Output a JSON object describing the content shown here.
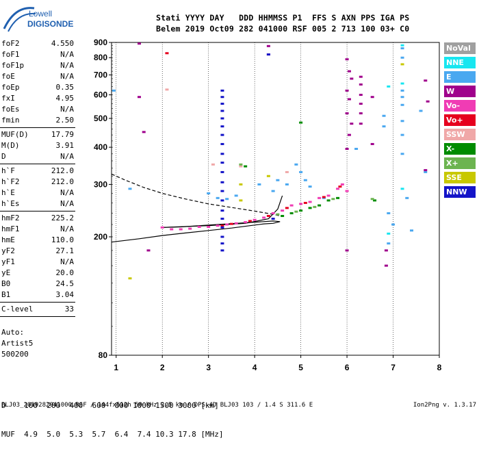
{
  "logo": {
    "line1": "Lowell",
    "line2": "DIGISONDE"
  },
  "header": {
    "row1": "Stati YYYY DAY   DDD HHMMSS P1  FFS S AXN PPS IGA PS",
    "row2": "Belem 2019 Oct09 282 041000 RSF 005 2 713 100 03+ C0"
  },
  "params": [
    {
      "name": "foF2",
      "value": "4.550"
    },
    {
      "name": "foF1",
      "value": "N/A"
    },
    {
      "name": "foF1p",
      "value": "N/A"
    },
    {
      "name": "foE",
      "value": "N/A"
    },
    {
      "name": "foEp",
      "value": "0.35"
    },
    {
      "name": "fxI",
      "value": "4.95"
    },
    {
      "name": "foEs",
      "value": "N/A"
    },
    {
      "name": "fmin",
      "value": "2.50"
    },
    {
      "sep": true
    },
    {
      "name": "MUF(D)",
      "value": "17.79"
    },
    {
      "name": "M(D)",
      "value": "3.91"
    },
    {
      "name": "D",
      "value": "N/A"
    },
    {
      "sep": true
    },
    {
      "name": "h`F",
      "value": "212.0"
    },
    {
      "name": "h`F2",
      "value": "212.0"
    },
    {
      "name": "h`E",
      "value": "N/A"
    },
    {
      "name": "h`Es",
      "value": "N/A"
    },
    {
      "sep": true
    },
    {
      "name": "hmF2",
      "value": "225.2"
    },
    {
      "name": "hmF1",
      "value": "N/A"
    },
    {
      "name": "hmE",
      "value": "110.0"
    },
    {
      "name": "yF2",
      "value": "27.1"
    },
    {
      "name": "yF1",
      "value": "N/A"
    },
    {
      "name": "yE",
      "value": "20.0"
    },
    {
      "name": "B0",
      "value": "24.5"
    },
    {
      "name": "B1",
      "value": "3.04"
    },
    {
      "sep": true
    },
    {
      "name": "C-level",
      "value": "33"
    },
    {
      "sep": true
    }
  ],
  "auto": {
    "line1": "Auto:",
    "line2": "Artist5",
    "line3": "500200"
  },
  "legend": [
    {
      "label": "NoVal",
      "color": "#a0a0a0"
    },
    {
      "label": "NNE",
      "color": "#18e6f0"
    },
    {
      "label": "E",
      "color": "#4aa8f0"
    },
    {
      "label": "W",
      "color": "#a0008c"
    },
    {
      "label": "Vo-",
      "color": "#f03cb4"
    },
    {
      "label": "Vo+",
      "color": "#e6001e"
    },
    {
      "label": "SSW",
      "color": "#f0a8a8"
    },
    {
      "label": "X-",
      "color": "#008c00"
    },
    {
      "label": "X+",
      "color": "#6cb450"
    },
    {
      "label": "SSE",
      "color": "#c8c800"
    },
    {
      "label": "NNW",
      "color": "#1414c8"
    }
  ],
  "distances": {
    "row1": "D    100  200  400  600  800 1000 1500 3000 [km]",
    "row2": "MUF  4.9  5.0  5.3  5.7  6.4  7.4 10.3 17.8 [MHz]"
  },
  "footer": "BLJ03_2019282041000.RSF / 144fx512h 50 kHz 2.5 km / DPS-4D BLJ03 103 / 1.4 S 311.6 E",
  "version": "Ion2Png v. 1.3.17",
  "chart_data": {
    "type": "scatter",
    "title": "",
    "xlabel": "",
    "ylabel": "",
    "xlim": [
      0.9,
      8.0
    ],
    "ylim": [
      80,
      900
    ],
    "y_scale": "log",
    "xticks": [
      1,
      2,
      3,
      4,
      5,
      6,
      7,
      8
    ],
    "yticks": [
      80,
      200,
      300,
      400,
      500,
      600,
      700,
      800,
      900
    ],
    "grid": "vertical",
    "series": [
      {
        "name": "NNE",
        "color": "#18e6f0",
        "points": [
          [
            7.2,
            880
          ],
          [
            7.2,
            655
          ],
          [
            6.9,
            640
          ],
          [
            7.2,
            290
          ],
          [
            6.9,
            205
          ]
        ]
      },
      {
        "name": "E",
        "color": "#4aa8f0",
        "points": [
          [
            0.95,
            620
          ],
          [
            1.3,
            290
          ],
          [
            3.0,
            280
          ],
          [
            3.2,
            270
          ],
          [
            3.4,
            268
          ],
          [
            3.6,
            275
          ],
          [
            4.1,
            300
          ],
          [
            4.4,
            285
          ],
          [
            4.5,
            310
          ],
          [
            4.7,
            300
          ],
          [
            4.9,
            350
          ],
          [
            5.0,
            330
          ],
          [
            5.1,
            310
          ],
          [
            5.2,
            295
          ],
          [
            5.5,
            270
          ],
          [
            6.2,
            395
          ],
          [
            6.8,
            510
          ],
          [
            6.8,
            470
          ],
          [
            6.9,
            240
          ],
          [
            6.9,
            190
          ],
          [
            7.0,
            220
          ],
          [
            7.2,
            860
          ],
          [
            7.2,
            800
          ],
          [
            7.2,
            620
          ],
          [
            7.2,
            590
          ],
          [
            7.2,
            555
          ],
          [
            7.2,
            490
          ],
          [
            7.2,
            440
          ],
          [
            7.2,
            380
          ],
          [
            7.3,
            270
          ],
          [
            7.4,
            210
          ],
          [
            7.6,
            530
          ],
          [
            7.7,
            330
          ]
        ]
      },
      {
        "name": "W",
        "color": "#a0008c",
        "points": [
          [
            1.5,
            590
          ],
          [
            1.6,
            450
          ],
          [
            1.5,
            892
          ],
          [
            4.3,
            875
          ],
          [
            4.3,
            820
          ],
          [
            6.0,
            790
          ],
          [
            6.05,
            720
          ],
          [
            6.1,
            680
          ],
          [
            6.0,
            620
          ],
          [
            6.05,
            580
          ],
          [
            6.0,
            520
          ],
          [
            6.1,
            480
          ],
          [
            6.05,
            440
          ],
          [
            6.0,
            395
          ],
          [
            6.3,
            690
          ],
          [
            6.3,
            650
          ],
          [
            6.3,
            600
          ],
          [
            6.3,
            560
          ],
          [
            6.3,
            520
          ],
          [
            6.3,
            480
          ],
          [
            6.55,
            590
          ],
          [
            6.55,
            410
          ],
          [
            6.85,
            180
          ],
          [
            6.85,
            160
          ],
          [
            7.7,
            670
          ],
          [
            7.75,
            570
          ],
          [
            7.7,
            335
          ],
          [
            1.7,
            180
          ],
          [
            6.0,
            180
          ]
        ]
      },
      {
        "name": "Vo-",
        "color": "#f03cb4",
        "points": [
          [
            2.0,
            215
          ],
          [
            2.2,
            212
          ],
          [
            2.4,
            212
          ],
          [
            2.6,
            213
          ],
          [
            2.8,
            216
          ],
          [
            3.0,
            216
          ],
          [
            3.2,
            218
          ],
          [
            3.4,
            220
          ],
          [
            3.6,
            222
          ],
          [
            3.8,
            224
          ],
          [
            4.0,
            228
          ],
          [
            4.2,
            232
          ],
          [
            4.4,
            240
          ],
          [
            4.6,
            245
          ],
          [
            4.8,
            255
          ],
          [
            5.0,
            258
          ],
          [
            5.2,
            262
          ],
          [
            5.4,
            270
          ],
          [
            5.6,
            275
          ],
          [
            5.8,
            290
          ],
          [
            5.9,
            300
          ],
          [
            6.0,
            285
          ]
        ]
      },
      {
        "name": "Vo+",
        "color": "#e6001e",
        "points": [
          [
            2.1,
            828
          ],
          [
            3.3,
            218
          ],
          [
            3.5,
            221
          ],
          [
            3.9,
            226
          ],
          [
            4.3,
            235
          ],
          [
            4.7,
            250
          ],
          [
            5.1,
            260
          ],
          [
            5.5,
            272
          ],
          [
            5.85,
            295
          ]
        ]
      },
      {
        "name": "SSW",
        "color": "#f0a8a8",
        "points": [
          [
            2.1,
            625
          ],
          [
            3.1,
            350
          ],
          [
            3.7,
            345
          ],
          [
            4.7,
            330
          ]
        ]
      },
      {
        "name": "X-",
        "color": "#008c00",
        "points": [
          [
            3.8,
            345
          ],
          [
            4.6,
            235
          ],
          [
            4.8,
            240
          ],
          [
            5.0,
            484
          ],
          [
            5.0,
            245
          ],
          [
            5.2,
            250
          ],
          [
            5.4,
            255
          ],
          [
            5.6,
            265
          ],
          [
            5.8,
            270
          ],
          [
            6.6,
            265
          ]
        ]
      },
      {
        "name": "X+",
        "color": "#6cb450",
        "points": [
          [
            3.7,
            350
          ],
          [
            4.5,
            238
          ],
          [
            4.9,
            243
          ],
          [
            5.3,
            252
          ],
          [
            5.7,
            268
          ],
          [
            6.55,
            268
          ]
        ]
      },
      {
        "name": "SSE",
        "color": "#c8c800",
        "points": [
          [
            1.3,
            145
          ],
          [
            3.7,
            300
          ],
          [
            3.7,
            265
          ],
          [
            4.3,
            320
          ],
          [
            7.2,
            760
          ]
        ]
      },
      {
        "name": "NNW",
        "color": "#1414c8",
        "points": [
          [
            3.3,
            620
          ],
          [
            3.3,
            590
          ],
          [
            3.3,
            560
          ],
          [
            3.3,
            530
          ],
          [
            3.3,
            500
          ],
          [
            3.3,
            470
          ],
          [
            3.3,
            440
          ],
          [
            3.3,
            410
          ],
          [
            3.3,
            380
          ],
          [
            3.3,
            355
          ],
          [
            3.3,
            330
          ],
          [
            3.3,
            305
          ],
          [
            3.3,
            285
          ],
          [
            3.3,
            265
          ],
          [
            3.3,
            245
          ],
          [
            3.3,
            230
          ],
          [
            3.3,
            215
          ],
          [
            3.3,
            200
          ],
          [
            3.3,
            190
          ],
          [
            3.3,
            180
          ],
          [
            4.3,
            820
          ],
          [
            4.4,
            230
          ]
        ]
      }
    ],
    "curves": [
      {
        "name": "ordinary-trace",
        "style": "solid",
        "points": [
          [
            0.9,
            192
          ],
          [
            1.5,
            197
          ],
          [
            2.0,
            202
          ],
          [
            2.5,
            206
          ],
          [
            3.0,
            210
          ],
          [
            3.5,
            214
          ],
          [
            3.9,
            218
          ],
          [
            4.2,
            221
          ],
          [
            4.4,
            222
          ],
          [
            4.55,
            225
          ],
          [
            4.4,
            226
          ],
          [
            4.0,
            224
          ],
          [
            3.6,
            222
          ],
          [
            3.2,
            220
          ],
          [
            2.8,
            218
          ],
          [
            2.4,
            216
          ],
          [
            2.0,
            215
          ]
        ]
      },
      {
        "name": "ordinary-trace-upper",
        "style": "solid",
        "points": [
          [
            2.0,
            215
          ],
          [
            3.0,
            218
          ],
          [
            3.8,
            222
          ],
          [
            4.3,
            230
          ],
          [
            4.5,
            248
          ],
          [
            4.6,
            275
          ]
        ]
      },
      {
        "name": "profile-dashed",
        "style": "dashed",
        "points": [
          [
            0.9,
            325
          ],
          [
            1.2,
            310
          ],
          [
            1.6,
            293
          ],
          [
            2.0,
            280
          ],
          [
            2.5,
            268
          ],
          [
            3.0,
            258
          ],
          [
            3.5,
            251
          ],
          [
            4.0,
            244
          ],
          [
            4.4,
            238
          ],
          [
            4.6,
            234
          ]
        ]
      }
    ]
  }
}
